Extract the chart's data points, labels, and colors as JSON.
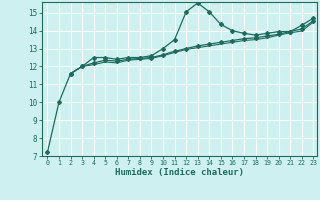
{
  "bg_color": "#cff0f0",
  "grid_color": "#ffffff",
  "line_color": "#1e6b5e",
  "xlabel": "Humidex (Indice chaleur)",
  "x_ticks": [
    0,
    1,
    2,
    3,
    4,
    5,
    6,
    7,
    8,
    9,
    10,
    11,
    12,
    13,
    14,
    15,
    16,
    17,
    18,
    19,
    20,
    21,
    22,
    23
  ],
  "ylim": [
    7,
    15.6
  ],
  "xlim": [
    -0.5,
    23.3
  ],
  "yticks": [
    7,
    8,
    9,
    10,
    11,
    12,
    13,
    14,
    15
  ],
  "line1_x": [
    0,
    1,
    2,
    3,
    4,
    5,
    6,
    7,
    8,
    9,
    10,
    11,
    12,
    13,
    14,
    15,
    16,
    17,
    18,
    19,
    20,
    21,
    22,
    23
  ],
  "line1_y": [
    7.2,
    10.0,
    11.6,
    12.0,
    12.5,
    12.5,
    12.4,
    12.5,
    12.5,
    12.6,
    13.0,
    13.5,
    15.05,
    15.55,
    15.05,
    14.35,
    14.0,
    13.85,
    13.75,
    13.85,
    13.95,
    13.95,
    14.3,
    14.7
  ],
  "line2_x": [
    2,
    3,
    4,
    5,
    6,
    7,
    8,
    9,
    10,
    11,
    12,
    13,
    14,
    15,
    16,
    17,
    18,
    19,
    20,
    21,
    22,
    23
  ],
  "line2_y": [
    11.6,
    12.0,
    12.2,
    12.35,
    12.3,
    12.4,
    12.45,
    12.5,
    12.65,
    12.85,
    13.0,
    13.15,
    13.25,
    13.35,
    13.45,
    13.55,
    13.6,
    13.7,
    13.8,
    13.95,
    14.1,
    14.55
  ],
  "line3_x": [
    2,
    3,
    4,
    5,
    6,
    7,
    8,
    9,
    10,
    11,
    12,
    13,
    14,
    15,
    16,
    17,
    18,
    19,
    20,
    21,
    22,
    23
  ],
  "line3_y": [
    11.6,
    12.0,
    12.1,
    12.25,
    12.2,
    12.35,
    12.4,
    12.45,
    12.6,
    12.78,
    12.95,
    13.05,
    13.15,
    13.25,
    13.35,
    13.45,
    13.5,
    13.6,
    13.75,
    13.88,
    13.98,
    14.48
  ]
}
